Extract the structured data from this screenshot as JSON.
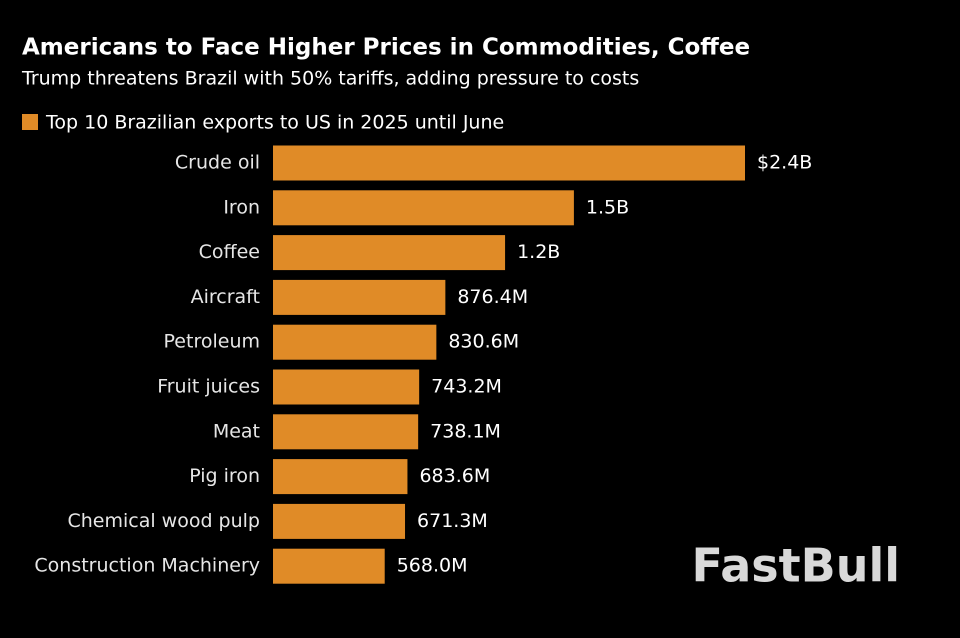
{
  "chart_data": {
    "type": "barh",
    "title": "Americans to Face Higher Prices in Commodities, Coffee",
    "subtitle": "Trump threatens Brazil with 50% tariffs, adding pressure to costs",
    "categories": [
      "Crude oil",
      "Iron",
      "Coffee",
      "Aircraft",
      "Petroleum",
      "Fruit juices",
      "Meat",
      "Pig iron",
      "Chemical wood pulp",
      "Construction Machinery"
    ],
    "series": [
      {
        "name": "Top 10 Brazilian exports to US in 2025 until June",
        "color": "#e08b27",
        "values": [
          2400000000,
          1530000000,
          1180000000,
          876400000,
          830600000,
          743200000,
          738100000,
          683600000,
          671300000,
          568000000
        ],
        "value_labels": [
          "$2.4B",
          "1.5B",
          "1.2B",
          "876.4M",
          "830.6M",
          "743.2M",
          "738.1M",
          "683.6M",
          "671.3M",
          "568.0M"
        ]
      }
    ],
    "watermark": "FastBull"
  }
}
